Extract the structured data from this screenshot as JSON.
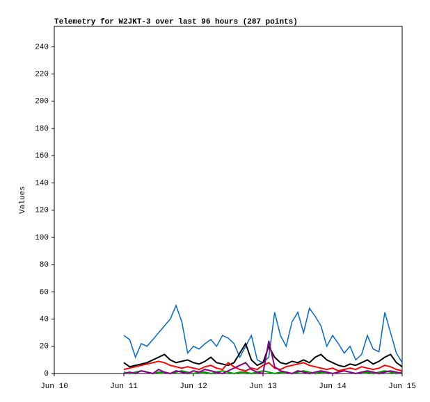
{
  "chart_data": {
    "type": "line",
    "title": "Telemetry for W2JKT-3 over last 96 hours (287 points)",
    "y_label": "Values",
    "xlim": [
      0,
      120
    ],
    "xticks": [
      {
        "value": 0,
        "label": "Jun 10"
      },
      {
        "value": 24,
        "label": "Jun 11"
      },
      {
        "value": 48,
        "label": "Jun 12"
      },
      {
        "value": 72,
        "label": "Jun 13"
      },
      {
        "value": 96,
        "label": "Jun 14"
      },
      {
        "value": 120,
        "label": "Jun 15"
      }
    ],
    "ylim": [
      0,
      255
    ],
    "yticks": [
      0,
      20,
      40,
      60,
      80,
      100,
      120,
      140,
      160,
      180,
      200,
      220,
      240
    ],
    "x": [
      24,
      26,
      28,
      30,
      32,
      34,
      36,
      38,
      40,
      42,
      44,
      46,
      48,
      50,
      52,
      54,
      56,
      58,
      60,
      62,
      64,
      66,
      68,
      70,
      72,
      74,
      76,
      78,
      80,
      82,
      84,
      86,
      88,
      90,
      92,
      94,
      96,
      98,
      100,
      102,
      104,
      106,
      108,
      110,
      112,
      114,
      116,
      118,
      120
    ],
    "series": [
      {
        "color": "#0066cc",
        "values": [
          28,
          25,
          12,
          22,
          20,
          25,
          30,
          35,
          40,
          50,
          38,
          15,
          20,
          18,
          22,
          25,
          20,
          28,
          26,
          22,
          12,
          20,
          28,
          10,
          8,
          12,
          45,
          28,
          20,
          38,
          45,
          30,
          48,
          42,
          35,
          20,
          28,
          22,
          15,
          20,
          10,
          14,
          28,
          18,
          16,
          45,
          30,
          15,
          8
        ]
      },
      {
        "color": "#000000",
        "values": [
          8,
          5,
          6,
          7,
          8,
          10,
          12,
          14,
          10,
          8,
          9,
          10,
          8,
          7,
          9,
          12,
          8,
          7,
          6,
          8,
          15,
          22,
          10,
          6,
          8,
          20,
          12,
          8,
          7,
          9,
          8,
          10,
          8,
          12,
          14,
          10,
          8,
          6,
          5,
          7,
          6,
          8,
          10,
          7,
          9,
          12,
          14,
          8,
          5
        ]
      },
      {
        "color": "#ff0000",
        "values": [
          3,
          4,
          5,
          6,
          7,
          8,
          9,
          8,
          6,
          5,
          4,
          5,
          4,
          3,
          5,
          6,
          4,
          3,
          8,
          5,
          3,
          2,
          4,
          3,
          6,
          8,
          4,
          3,
          5,
          6,
          7,
          8,
          6,
          5,
          4,
          3,
          4,
          2,
          3,
          4,
          3,
          5,
          4,
          3,
          4,
          6,
          5,
          3,
          2
        ]
      },
      {
        "color": "#009900",
        "values": [
          1,
          0,
          1,
          2,
          1,
          0,
          1,
          1,
          0,
          1,
          2,
          1,
          0,
          1,
          1,
          0,
          1,
          2,
          1,
          0,
          1,
          1,
          0,
          1,
          2,
          1,
          0,
          1,
          1,
          0,
          1,
          2,
          1,
          0,
          1,
          1,
          0,
          1,
          2,
          1,
          0,
          1,
          1,
          0,
          1,
          2,
          1,
          0,
          1
        ]
      },
      {
        "color": "#880088",
        "values": [
          0,
          1,
          0,
          2,
          1,
          0,
          3,
          1,
          0,
          2,
          1,
          0,
          2,
          1,
          3,
          2,
          1,
          0,
          2,
          4,
          6,
          8,
          3,
          1,
          0,
          24,
          5,
          2,
          1,
          0,
          2,
          1,
          0,
          1,
          2,
          1,
          0,
          1,
          2,
          1,
          0,
          1,
          2,
          1,
          0,
          1,
          2,
          1,
          0
        ]
      }
    ]
  }
}
